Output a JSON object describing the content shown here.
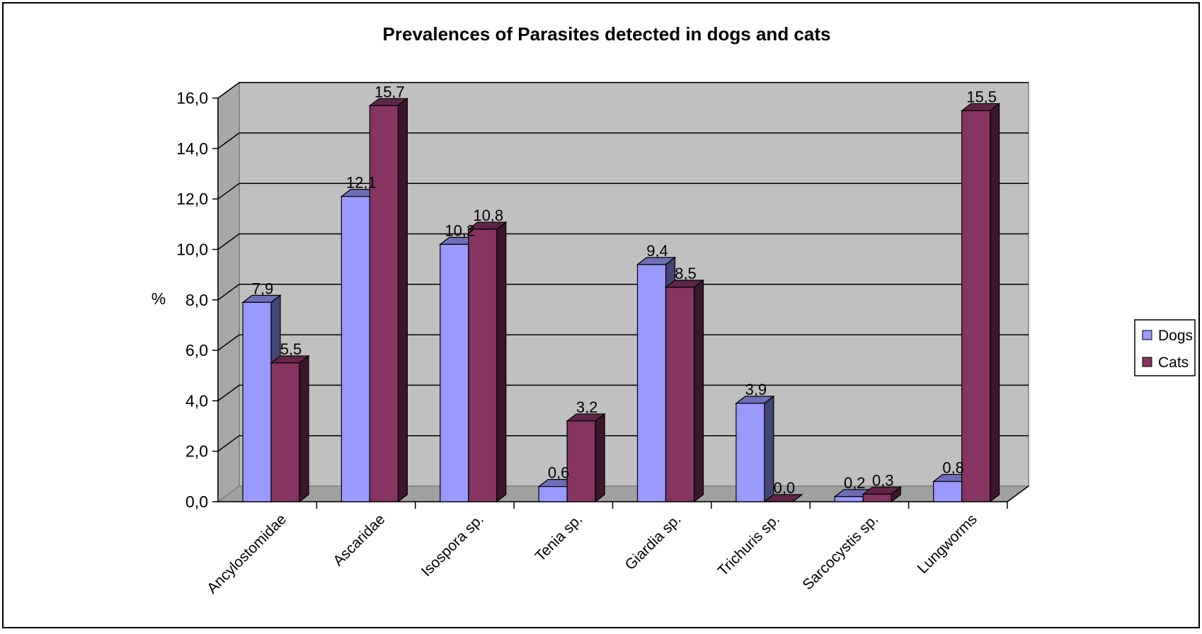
{
  "chart_data": {
    "type": "bar",
    "title": "Prevalences of Parasites detected in dogs and cats",
    "xlabel": "",
    "ylabel": "%",
    "ylim": [
      0,
      16
    ],
    "ytick_labels": [
      "0,0",
      "2,0",
      "4,0",
      "6,0",
      "8,0",
      "10,0",
      "12,0",
      "14,0",
      "16,0"
    ],
    "categories": [
      "Ancylostomidae",
      "Ascaridae",
      "Isospora sp.",
      "Tenia sp.",
      "Giardia sp.",
      "Trichuris sp.",
      "Sarcocystis sp.",
      "Lungworms"
    ],
    "series": [
      {
        "name": "Dogs",
        "values": [
          7.9,
          12.1,
          10.2,
          0.6,
          9.4,
          3.9,
          0.2,
          0.8
        ],
        "labels": [
          "7,9",
          "12,1",
          "10,2",
          "0,6",
          "9,4",
          "3,9",
          "0,2",
          "0,8"
        ]
      },
      {
        "name": "Cats",
        "values": [
          5.5,
          15.7,
          10.8,
          3.2,
          8.5,
          0.0,
          0.3,
          15.5
        ],
        "labels": [
          "5,5",
          "15,7",
          "10,8",
          "3,2",
          "8,5",
          "0,0",
          "0,3",
          "15,5"
        ]
      }
    ],
    "grid": true,
    "legend_position": "right",
    "colors": {
      "Dogs": "#9999ff",
      "Cats": "#863462",
      "plot_background": "#c0c0c0",
      "grid": "#000000"
    }
  }
}
